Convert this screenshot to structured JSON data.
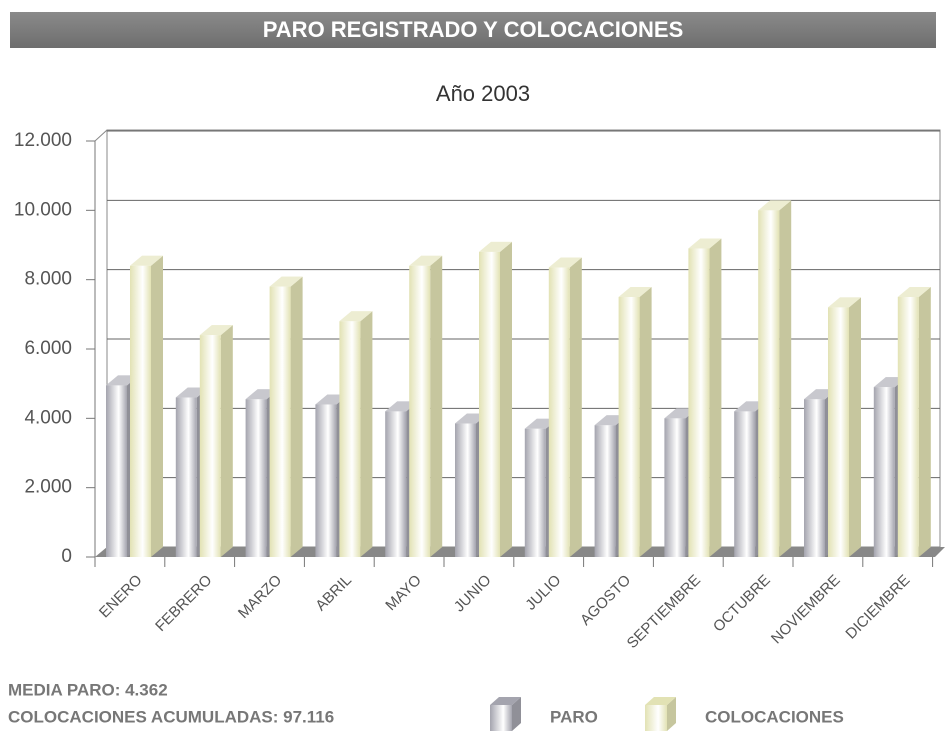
{
  "header": {
    "title": "PARO REGISTRADO Y COLOCACIONES"
  },
  "chart_data": {
    "type": "bar3d",
    "subtitle": "Año 2003",
    "categories": [
      "ENERO",
      "FEBRERO",
      "MARZO",
      "ABRIL",
      "MAYO",
      "JUNIO",
      "JULIO",
      "AGOSTO",
      "SEPTIEMBRE",
      "OCTUBRE",
      "NOVIEMBRE",
      "DICIEMBRE"
    ],
    "series": [
      {
        "name": "PARO",
        "color": "#a4a4ae",
        "values": [
          4950,
          4600,
          4550,
          4400,
          4200,
          3850,
          3700,
          3800,
          4000,
          4200,
          4550,
          4900
        ]
      },
      {
        "name": "COLOCACIONES",
        "color": "#e2e2b4",
        "values": [
          8400,
          6400,
          7800,
          6800,
          8400,
          8800,
          8350,
          7500,
          8900,
          10000,
          7200,
          7500
        ]
      }
    ],
    "ylim": [
      0,
      12000
    ],
    "yticks": [
      0,
      {
        "value": 2000,
        "label": "2.000"
      },
      {
        "value": 4000,
        "label": "4.000"
      },
      {
        "value": 6000,
        "label": "6.000"
      },
      {
        "value": 8000,
        "label": "8.000"
      },
      {
        "value": 10000,
        "label": "10.000"
      },
      {
        "value": 12000,
        "label": "12.000"
      }
    ],
    "grid": true
  },
  "footer": {
    "lines": [
      "MEDIA PARO: 4.362",
      "COLOCACIONES ACUMULADAS: 97.116"
    ]
  }
}
